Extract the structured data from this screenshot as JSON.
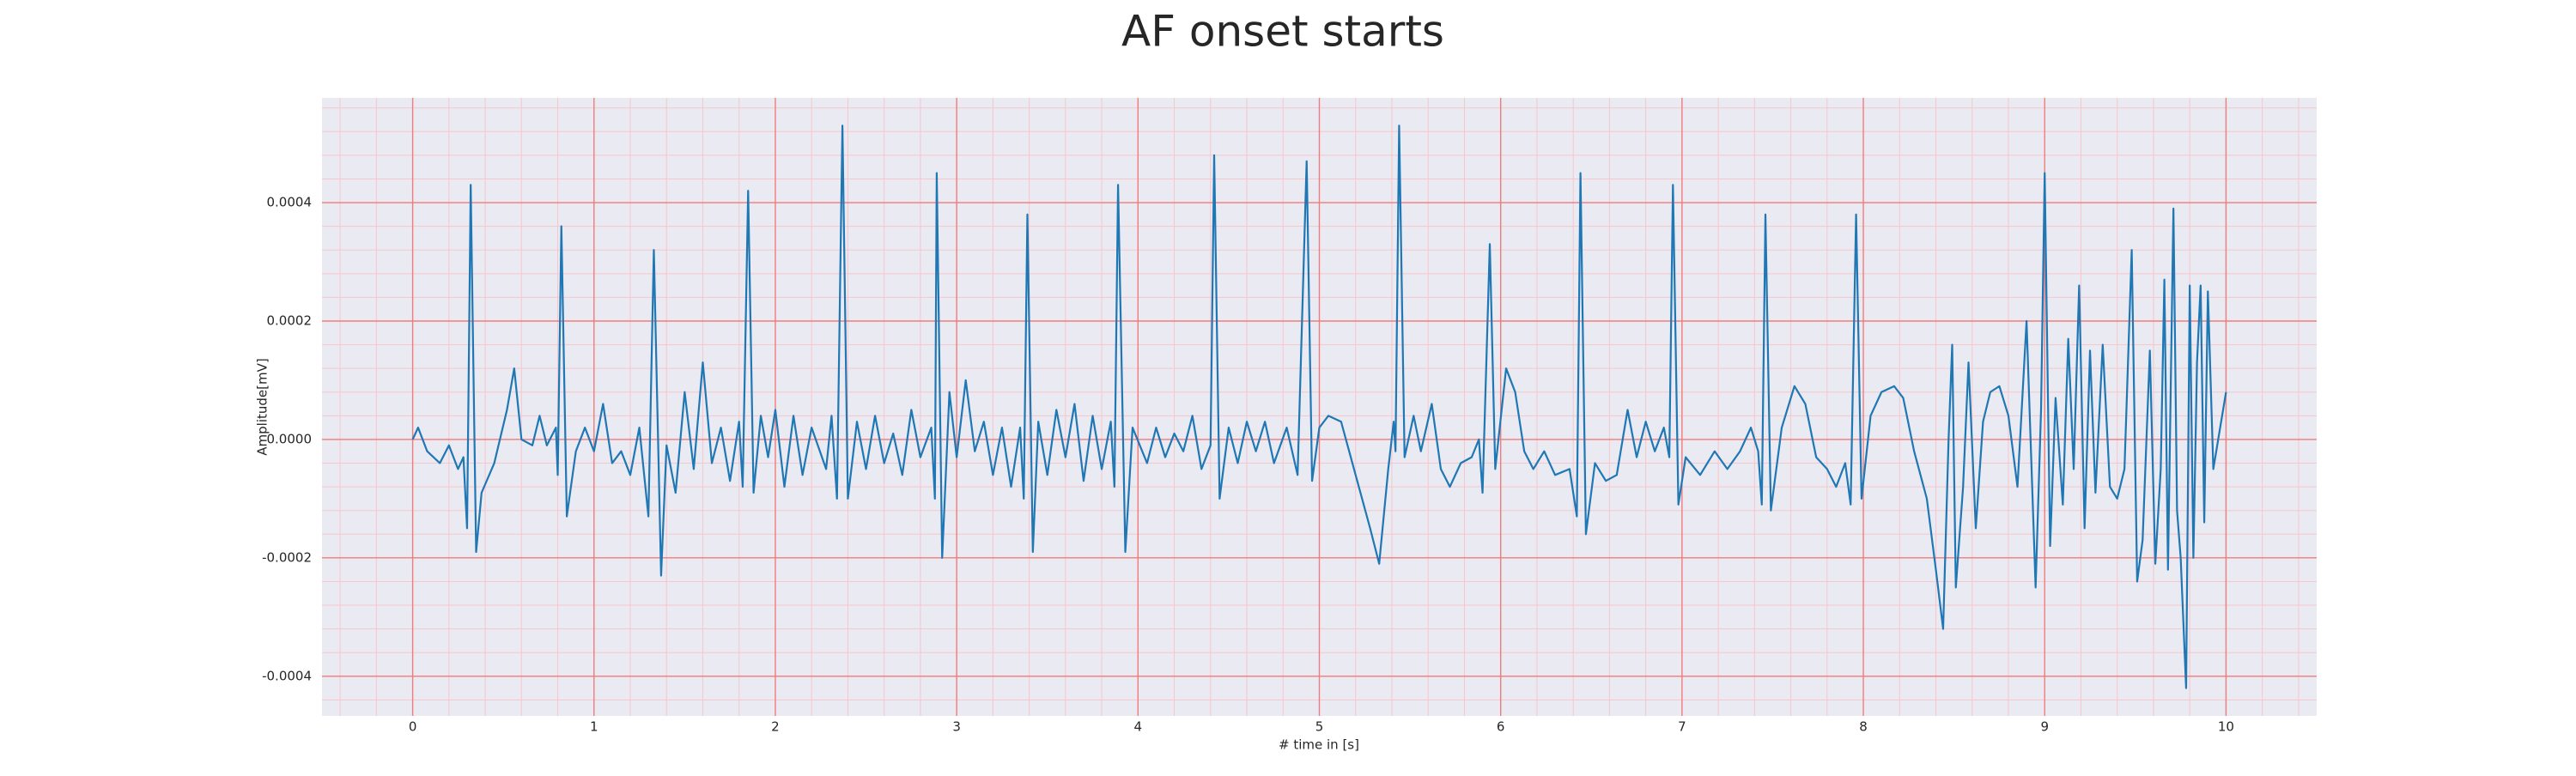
{
  "chart_data": {
    "type": "line",
    "title": "AF onset starts",
    "x_label": "# time in [s]",
    "y_label": "Amplitude[mV]",
    "x": [
      0.0,
      0.03,
      0.08,
      0.15,
      0.2,
      0.25,
      0.28,
      0.3,
      0.32,
      0.35,
      0.38,
      0.45,
      0.52,
      0.56,
      0.6,
      0.66,
      0.7,
      0.74,
      0.79,
      0.8,
      0.82,
      0.85,
      0.9,
      0.95,
      1.0,
      1.05,
      1.1,
      1.15,
      1.2,
      1.25,
      1.3,
      1.33,
      1.37,
      1.4,
      1.45,
      1.5,
      1.55,
      1.6,
      1.65,
      1.7,
      1.75,
      1.8,
      1.82,
      1.85,
      1.88,
      1.92,
      1.96,
      2.0,
      2.05,
      2.1,
      2.15,
      2.2,
      2.28,
      2.31,
      2.34,
      2.37,
      2.4,
      2.45,
      2.5,
      2.55,
      2.6,
      2.65,
      2.7,
      2.75,
      2.8,
      2.86,
      2.88,
      2.89,
      2.92,
      2.96,
      3.0,
      3.05,
      3.1,
      3.15,
      3.2,
      3.25,
      3.3,
      3.35,
      3.37,
      3.39,
      3.42,
      3.45,
      3.5,
      3.55,
      3.6,
      3.65,
      3.7,
      3.75,
      3.8,
      3.85,
      3.87,
      3.89,
      3.93,
      3.97,
      4.05,
      4.1,
      4.15,
      4.2,
      4.25,
      4.3,
      4.35,
      4.4,
      4.42,
      4.45,
      4.5,
      4.55,
      4.6,
      4.65,
      4.7,
      4.75,
      4.82,
      4.88,
      4.93,
      4.96,
      5.0,
      5.05,
      5.12,
      5.2,
      5.28,
      5.33,
      5.38,
      5.41,
      5.42,
      5.44,
      5.47,
      5.52,
      5.56,
      5.62,
      5.67,
      5.72,
      5.78,
      5.84,
      5.88,
      5.9,
      5.94,
      5.97,
      6.03,
      6.08,
      6.13,
      6.18,
      6.24,
      6.3,
      6.38,
      6.42,
      6.44,
      6.47,
      6.52,
      6.58,
      6.64,
      6.7,
      6.75,
      6.8,
      6.85,
      6.9,
      6.93,
      6.95,
      6.98,
      7.02,
      7.1,
      7.18,
      7.25,
      7.32,
      7.38,
      7.42,
      7.44,
      7.46,
      7.49,
      7.55,
      7.62,
      7.68,
      7.74,
      7.8,
      7.85,
      7.9,
      7.93,
      7.96,
      7.99,
      8.04,
      8.1,
      8.17,
      8.22,
      8.28,
      8.35,
      8.4,
      8.44,
      8.47,
      8.49,
      8.51,
      8.55,
      8.58,
      8.62,
      8.66,
      8.7,
      8.75,
      8.8,
      8.85,
      8.9,
      8.95,
      8.98,
      9.0,
      9.03,
      9.06,
      9.1,
      9.13,
      9.16,
      9.19,
      9.22,
      9.25,
      9.28,
      9.32,
      9.36,
      9.4,
      9.44,
      9.48,
      9.51,
      9.54,
      9.58,
      9.61,
      9.64,
      9.66,
      9.68,
      9.71,
      9.73,
      9.75,
      9.78,
      9.8,
      9.82,
      9.84,
      9.86,
      9.88,
      9.9,
      9.93,
      10.0
    ],
    "values": [
      0.0,
      2e-05,
      -2e-05,
      -4e-05,
      -1e-05,
      -5e-05,
      -3e-05,
      -0.00015,
      0.00043,
      -0.00019,
      -9e-05,
      -4e-05,
      5e-05,
      0.00012,
      0.0,
      -1e-05,
      4e-05,
      -1e-05,
      2e-05,
      -6e-05,
      0.00036,
      -0.00013,
      -2e-05,
      2e-05,
      -2e-05,
      6e-05,
      -4e-05,
      -2e-05,
      -6e-05,
      2e-05,
      -0.00013,
      0.00032,
      -0.00023,
      -1e-05,
      -9e-05,
      8e-05,
      -5e-05,
      0.00013,
      -4e-05,
      2e-05,
      -7e-05,
      3e-05,
      -8e-05,
      0.00042,
      -9e-05,
      4e-05,
      -3e-05,
      5e-05,
      -8e-05,
      4e-05,
      -6e-05,
      2e-05,
      -5e-05,
      4e-05,
      -0.0001,
      0.00053,
      -0.0001,
      3e-05,
      -5e-05,
      4e-05,
      -4e-05,
      1e-05,
      -6e-05,
      5e-05,
      -3e-05,
      2e-05,
      -0.0001,
      0.00045,
      -0.0002,
      8e-05,
      -3e-05,
      0.0001,
      -2e-05,
      3e-05,
      -6e-05,
      2e-05,
      -8e-05,
      2e-05,
      -0.0001,
      0.00038,
      -0.00019,
      3e-05,
      -6e-05,
      5e-05,
      -3e-05,
      6e-05,
      -7e-05,
      4e-05,
      -5e-05,
      3e-05,
      -8e-05,
      0.00043,
      -0.00019,
      2e-05,
      -4e-05,
      2e-05,
      -3e-05,
      1e-05,
      -2e-05,
      4e-05,
      -5e-05,
      -1e-05,
      0.00048,
      -0.0001,
      2e-05,
      -4e-05,
      3e-05,
      -2e-05,
      3e-05,
      -4e-05,
      2e-05,
      -6e-05,
      0.00047,
      -7e-05,
      2e-05,
      4e-05,
      3e-05,
      -6e-05,
      -0.00015,
      -0.00021,
      -5e-05,
      3e-05,
      -2e-05,
      0.00053,
      -3e-05,
      4e-05,
      -2e-05,
      6e-05,
      -5e-05,
      -8e-05,
      -4e-05,
      -3e-05,
      0.0,
      -9e-05,
      0.00033,
      -5e-05,
      0.00012,
      8e-05,
      -2e-05,
      -5e-05,
      -2e-05,
      -6e-05,
      -5e-05,
      -0.00013,
      0.00045,
      -0.00016,
      -4e-05,
      -7e-05,
      -6e-05,
      5e-05,
      -3e-05,
      3e-05,
      -2e-05,
      2e-05,
      -3e-05,
      0.00043,
      -0.00011,
      -3e-05,
      -6e-05,
      -2e-05,
      -5e-05,
      -2e-05,
      2e-05,
      -2e-05,
      -0.00011,
      0.00038,
      -0.00012,
      2e-05,
      9e-05,
      6e-05,
      -3e-05,
      -5e-05,
      -8e-05,
      -4e-05,
      -0.00011,
      0.00038,
      -0.0001,
      4e-05,
      8e-05,
      9e-05,
      7e-05,
      -2e-05,
      -0.0001,
      -0.00022,
      -0.00032,
      0.0,
      0.00016,
      -0.00025,
      -8e-05,
      0.00013,
      -0.00015,
      3e-05,
      8e-05,
      9e-05,
      4e-05,
      -8e-05,
      0.0002,
      -0.00025,
      5e-05,
      0.00045,
      -0.00018,
      7e-05,
      -0.00011,
      0.00017,
      -5e-05,
      0.00026,
      -0.00015,
      0.00015,
      -9e-05,
      0.00016,
      -8e-05,
      -0.0001,
      -5e-05,
      0.00032,
      -0.00024,
      -0.00017,
      0.00015,
      -0.00021,
      -5e-05,
      0.00027,
      -0.00022,
      0.00039,
      -0.00012,
      -0.0002,
      -0.00042,
      0.00026,
      -0.0002,
      0.00013,
      0.00026,
      -0.00014,
      0.00025,
      -5e-05,
      8e-05
    ],
    "color": "#1f77b4",
    "xlim": [
      -0.5,
      10.5
    ],
    "xticks": [
      0,
      1,
      2,
      3,
      4,
      5,
      6,
      7,
      8,
      9,
      10
    ],
    "ylim": [
      -0.000467,
      0.000577
    ],
    "yticks": [
      -0.0004,
      -0.0002,
      {
        "value": 0,
        "label": "0.0000"
      },
      0.0002,
      0.0004
    ],
    "grid": true,
    "minor_grid": true
  }
}
